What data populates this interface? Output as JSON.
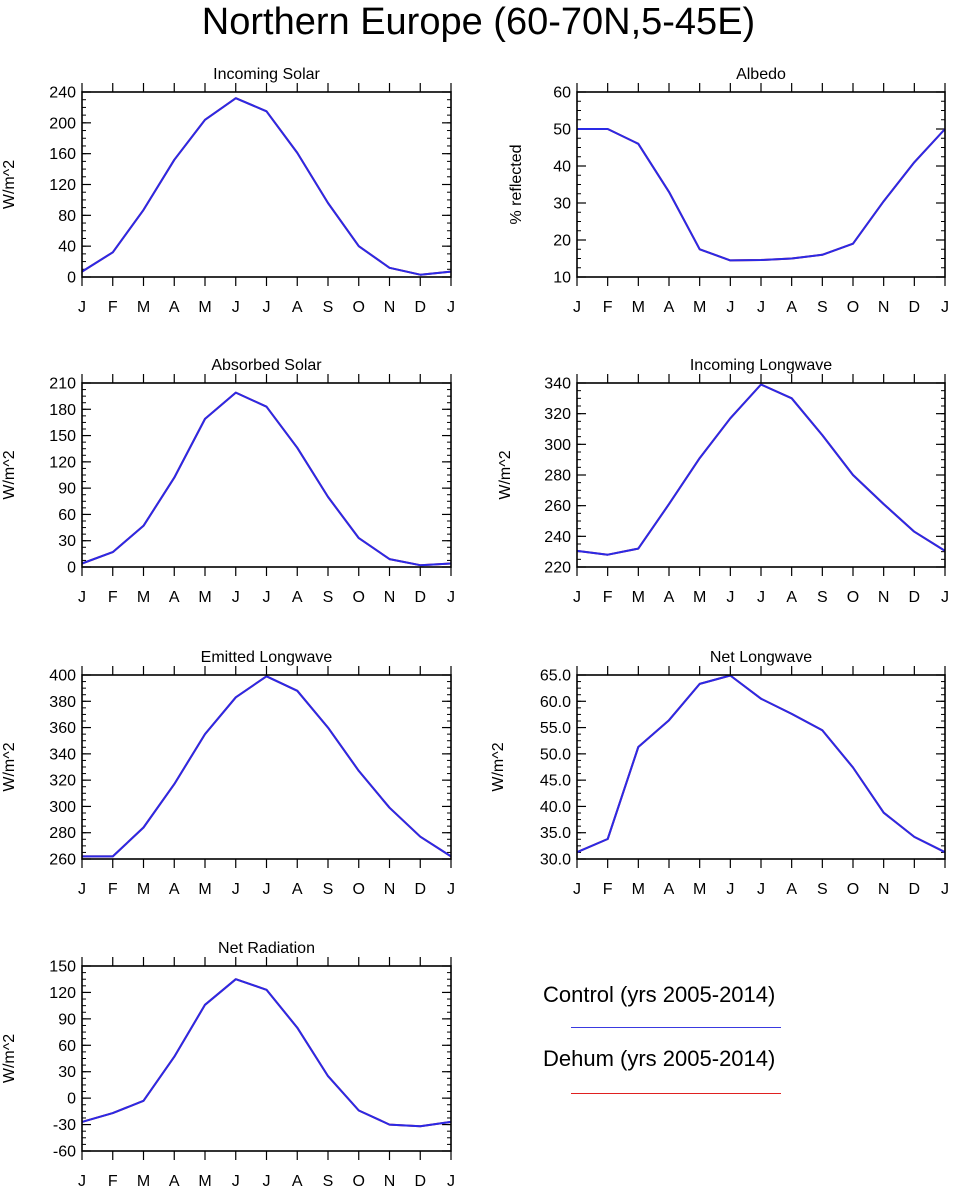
{
  "figure_title": "Northern Europe (60-70N,5-45E)",
  "months": [
    "J",
    "F",
    "M",
    "A",
    "M",
    "J",
    "J",
    "A",
    "S",
    "O",
    "N",
    "D",
    "J"
  ],
  "legend": [
    {
      "label": "Control (yrs 2005-2014)",
      "color": "#3a3ae0"
    },
    {
      "label": "Dehum (yrs 2005-2014)",
      "color": "#e02020"
    }
  ],
  "chart_data": [
    {
      "type": "line",
      "title": "Incoming Solar",
      "ylabel": "W/m^2",
      "ylim": [
        0,
        240
      ],
      "yticks": [
        0,
        40,
        80,
        120,
        160,
        200,
        240
      ],
      "ytick_labels": [
        "0",
        "40",
        "80",
        "120",
        "160",
        "200",
        "240"
      ],
      "categories": [
        "J",
        "F",
        "M",
        "A",
        "M",
        "J",
        "J",
        "A",
        "S",
        "O",
        "N",
        "D",
        "J"
      ],
      "series": [
        {
          "name": "Control (yrs 2005-2014)",
          "color": "#2a2ae6",
          "values": [
            7,
            32,
            87,
            152,
            204,
            232,
            215,
            161,
            96,
            40,
            12,
            3,
            7
          ]
        },
        {
          "name": "Dehum (yrs 2005-2014)",
          "color": "#e02020",
          "values": [
            7,
            32,
            87,
            152,
            204,
            232,
            215,
            161,
            96,
            40,
            12,
            3,
            7
          ]
        }
      ]
    },
    {
      "type": "line",
      "title": "Albedo",
      "ylabel": "% reflected",
      "ylim": [
        10,
        60
      ],
      "yticks": [
        10,
        20,
        30,
        40,
        50,
        60
      ],
      "ytick_labels": [
        "10",
        "20",
        "30",
        "40",
        "50",
        "60"
      ],
      "categories": [
        "J",
        "F",
        "M",
        "A",
        "M",
        "J",
        "J",
        "A",
        "S",
        "O",
        "N",
        "D",
        "J"
      ],
      "series": [
        {
          "name": "Control (yrs 2005-2014)",
          "color": "#2a2ae6",
          "values": [
            50,
            50,
            46,
            33,
            17.5,
            14.5,
            14.6,
            15,
            16,
            19,
            30.5,
            41,
            50
          ]
        },
        {
          "name": "Dehum (yrs 2005-2014)",
          "color": "#e02020",
          "values": [
            50,
            50,
            46,
            33,
            17.5,
            14.5,
            14.6,
            15,
            16,
            19,
            30.5,
            41,
            50
          ]
        }
      ]
    },
    {
      "type": "line",
      "title": "Absorbed Solar",
      "ylabel": "W/m^2",
      "ylim": [
        0,
        210
      ],
      "yticks": [
        0,
        30,
        60,
        90,
        120,
        150,
        180,
        210
      ],
      "ytick_labels": [
        "0",
        "30",
        "60",
        "90",
        "120",
        "150",
        "180",
        "210"
      ],
      "categories": [
        "J",
        "F",
        "M",
        "A",
        "M",
        "J",
        "J",
        "A",
        "S",
        "O",
        "N",
        "D",
        "J"
      ],
      "series": [
        {
          "name": "Control (yrs 2005-2014)",
          "color": "#2a2ae6",
          "values": [
            4,
            17,
            47,
            102,
            169,
            199,
            183,
            136,
            80,
            33,
            9,
            2,
            4
          ]
        },
        {
          "name": "Dehum (yrs 2005-2014)",
          "color": "#e02020",
          "values": [
            4,
            17,
            47,
            102,
            169,
            199,
            183,
            136,
            80,
            33,
            9,
            2,
            4
          ]
        }
      ]
    },
    {
      "type": "line",
      "title": "Incoming Longwave",
      "ylabel": "W/m^2",
      "ylim": [
        220,
        340
      ],
      "yticks": [
        220,
        240,
        260,
        280,
        300,
        320,
        340
      ],
      "ytick_labels": [
        "220",
        "240",
        "260",
        "280",
        "300",
        "320",
        "340"
      ],
      "categories": [
        "J",
        "F",
        "M",
        "A",
        "M",
        "J",
        "J",
        "A",
        "S",
        "O",
        "N",
        "D",
        "J"
      ],
      "series": [
        {
          "name": "Control (yrs 2005-2014)",
          "color": "#2a2ae6",
          "values": [
            230.5,
            228,
            232,
            261,
            291,
            317,
            339,
            330,
            306,
            280,
            261,
            243,
            230.5
          ]
        },
        {
          "name": "Dehum (yrs 2005-2014)",
          "color": "#e02020",
          "values": [
            230.5,
            228,
            232,
            261,
            291,
            317,
            339,
            330,
            306,
            280,
            261,
            243,
            230.5
          ]
        }
      ]
    },
    {
      "type": "line",
      "title": "Emitted Longwave",
      "ylabel": "W/m^2",
      "ylim": [
        260,
        400
      ],
      "yticks": [
        260,
        280,
        300,
        320,
        340,
        360,
        380,
        400
      ],
      "ytick_labels": [
        "260",
        "280",
        "300",
        "320",
        "340",
        "360",
        "380",
        "400"
      ],
      "categories": [
        "J",
        "F",
        "M",
        "A",
        "M",
        "J",
        "J",
        "A",
        "S",
        "O",
        "N",
        "D",
        "J"
      ],
      "series": [
        {
          "name": "Control (yrs 2005-2014)",
          "color": "#2a2ae6",
          "values": [
            262,
            262,
            284,
            317,
            355,
            383,
            399,
            388,
            360,
            327,
            299,
            277,
            262
          ]
        },
        {
          "name": "Dehum (yrs 2005-2014)",
          "color": "#e02020",
          "values": [
            262,
            262,
            284,
            317,
            355,
            383,
            399,
            388,
            360,
            327,
            299,
            277,
            262
          ]
        }
      ]
    },
    {
      "type": "line",
      "title": "Net Longwave",
      "ylabel": "W/m^2",
      "ylim": [
        30,
        65
      ],
      "yticks": [
        30,
        35,
        40,
        45,
        50,
        55,
        60,
        65
      ],
      "ytick_labels": [
        "30.0",
        "35.0",
        "40.0",
        "45.0",
        "50.0",
        "55.0",
        "60.0",
        "65.0"
      ],
      "categories": [
        "J",
        "F",
        "M",
        "A",
        "M",
        "J",
        "J",
        "A",
        "S",
        "O",
        "N",
        "D",
        "J"
      ],
      "series": [
        {
          "name": "Control (yrs 2005-2014)",
          "color": "#2a2ae6",
          "values": [
            31.3,
            33.8,
            51.3,
            56.4,
            63.3,
            64.9,
            60.5,
            57.6,
            54.5,
            47.4,
            38.8,
            34.2,
            31.3
          ]
        },
        {
          "name": "Dehum (yrs 2005-2014)",
          "color": "#e02020",
          "values": [
            31.3,
            33.8,
            51.3,
            56.4,
            63.3,
            64.9,
            60.5,
            57.6,
            54.5,
            47.4,
            38.8,
            34.2,
            31.3
          ]
        }
      ]
    },
    {
      "type": "line",
      "title": "Net Radiation",
      "ylabel": "W/m^2",
      "ylim": [
        -60,
        150
      ],
      "yticks": [
        -60,
        -30,
        0,
        30,
        60,
        90,
        120,
        150
      ],
      "ytick_labels": [
        "-60",
        "-30",
        "0",
        "30",
        "60",
        "90",
        "120",
        "150"
      ],
      "categories": [
        "J",
        "F",
        "M",
        "A",
        "M",
        "J",
        "J",
        "A",
        "S",
        "O",
        "N",
        "D",
        "J"
      ],
      "series": [
        {
          "name": "Control (yrs 2005-2014)",
          "color": "#2a2ae6",
          "values": [
            -27,
            -17,
            -3,
            47,
            106,
            135,
            123,
            80,
            25,
            -14,
            -30,
            -32,
            -27
          ]
        },
        {
          "name": "Dehum (yrs 2005-2014)",
          "color": "#e02020",
          "values": [
            -27,
            -17,
            -3,
            47,
            106,
            135,
            123,
            80,
            25,
            -14,
            -30,
            -32,
            -27
          ]
        }
      ]
    }
  ]
}
